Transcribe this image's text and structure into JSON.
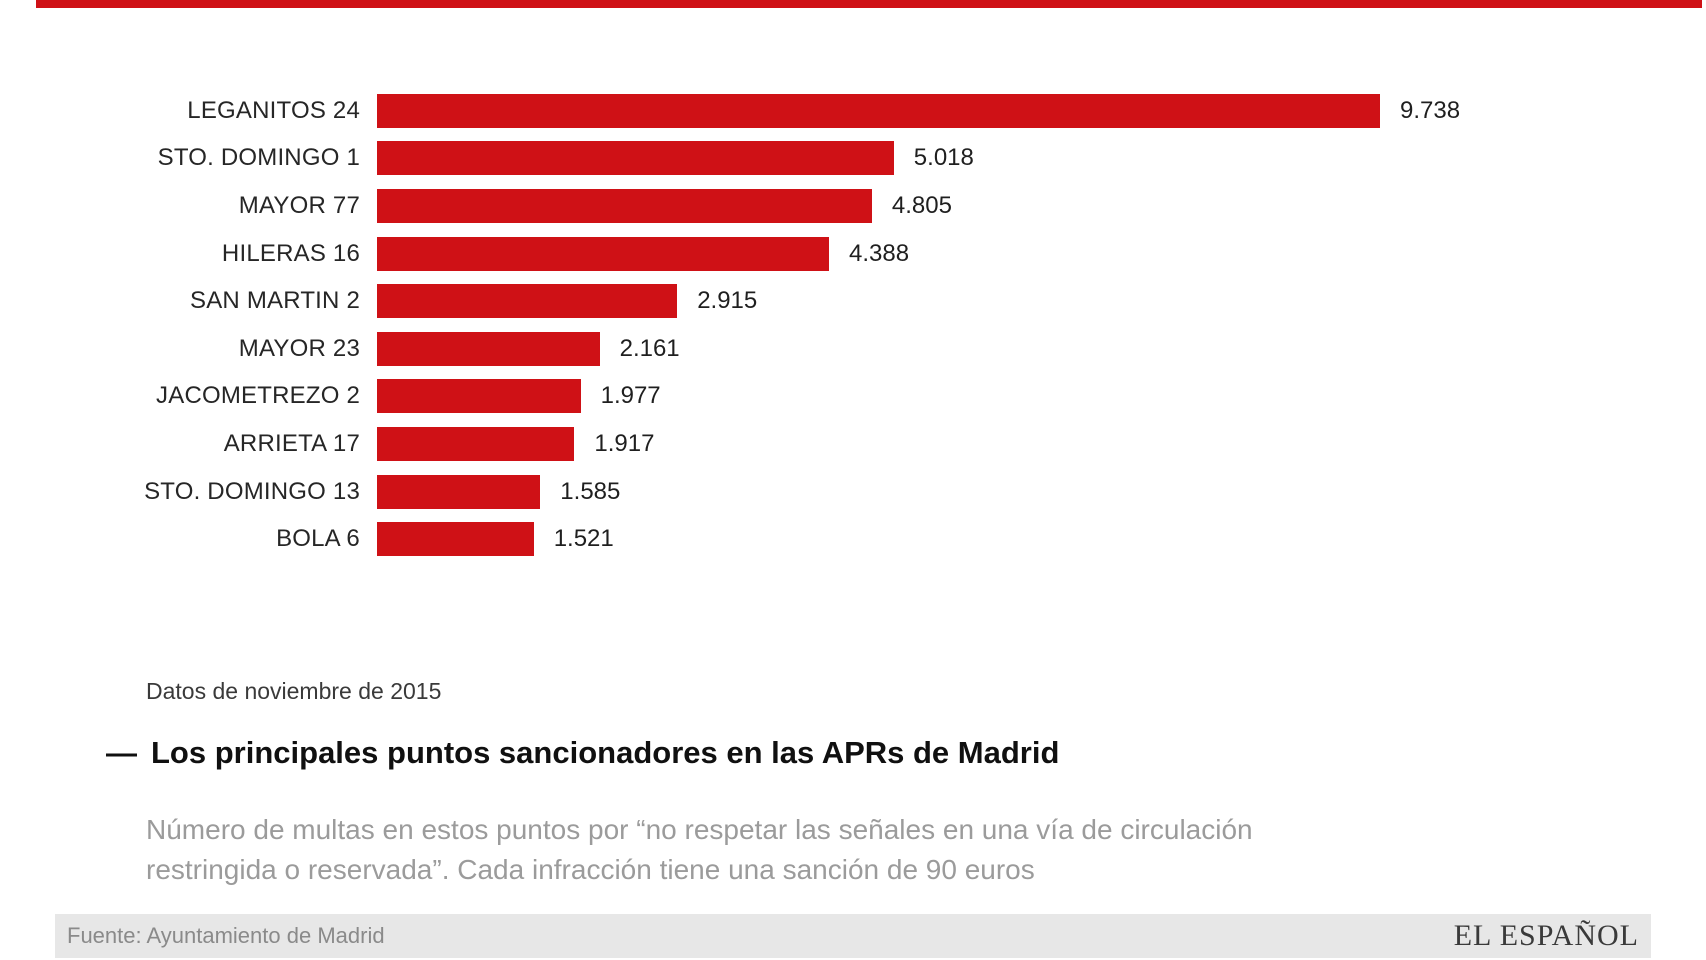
{
  "colors": {
    "accent": "#cf1116",
    "bar": "#cf1116",
    "footer_bg": "#e7e7e7"
  },
  "chart_data": {
    "type": "bar",
    "orientation": "horizontal",
    "title_dash": "—",
    "title": "Los principales puntos sancionadores en las APRs de Madrid",
    "note": "Datos de noviembre de 2015",
    "subtitle_lines": [
      "Número de multas en estos puntos por “no respetar las señales en una vía de circulación",
      "restringida o reservada”. Cada infracción tiene una sanción de 90 euros"
    ],
    "categories": [
      "LEGANITOS 24",
      "STO. DOMINGO 1",
      "MAYOR 77",
      "HILERAS 16",
      "SAN MARTIN 2",
      "MAYOR 23",
      "JACOMETREZO 2",
      "ARRIETA 17",
      "STO. DOMINGO 13",
      "BOLA 6"
    ],
    "values": [
      9738,
      5018,
      4805,
      4388,
      2915,
      2161,
      1977,
      1917,
      1585,
      1521
    ],
    "value_labels": [
      "9.738",
      "5.018",
      "4.805",
      "4.388",
      "2.915",
      "2.161",
      "1.977",
      "1.917",
      "1.585",
      "1.521"
    ],
    "xlim": [
      0,
      9738
    ],
    "bar_color": "#cf1116",
    "grid": false,
    "legend": "none"
  },
  "footer": {
    "source": "Fuente: Ayuntamiento de Madrid",
    "brand": "EL ESPAÑOL"
  }
}
